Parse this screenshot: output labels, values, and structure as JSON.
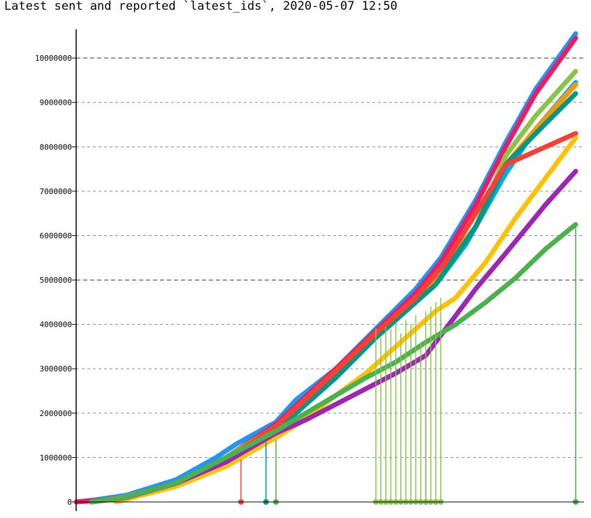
{
  "chart_data": {
    "type": "line",
    "title": "Latest sent and reported `latest_ids`, 2020-05-07 12:50",
    "xlabel": "",
    "ylabel": "",
    "ylim": [
      0,
      10600000
    ],
    "xlim": [
      0,
      100
    ],
    "grid": "horizontal dashed",
    "y_ticks": [
      {
        "value": 0,
        "label": "0"
      },
      {
        "value": 1000000,
        "label": "1000000"
      },
      {
        "value": 2000000,
        "label": "2000000"
      },
      {
        "value": 3000000,
        "label": "3000000"
      },
      {
        "value": 4000000,
        "label": "4000000"
      },
      {
        "value": 5000000,
        "label": "5000000"
      },
      {
        "value": 6000000,
        "label": "6000000"
      },
      {
        "value": 7000000,
        "label": "7000000"
      },
      {
        "value": 8000000,
        "label": "8000000"
      },
      {
        "value": 9000000,
        "label": "9000000"
      },
      {
        "value": 10000000,
        "label": "10000000"
      }
    ],
    "series": [
      {
        "color": "#2196f3",
        "values": [
          [
            0,
            0
          ],
          [
            4,
            50000
          ],
          [
            10,
            150000
          ],
          [
            20,
            500000
          ],
          [
            28,
            1000000
          ],
          [
            32,
            1300000
          ],
          [
            40,
            1800000
          ],
          [
            44,
            2300000
          ],
          [
            52,
            3000000
          ],
          [
            60,
            3900000
          ],
          [
            68,
            4800000
          ],
          [
            73,
            5500000
          ],
          [
            80,
            6800000
          ],
          [
            86,
            8100000
          ],
          [
            92,
            9300000
          ],
          [
            100,
            10550000
          ]
        ]
      },
      {
        "color": "#e91e63",
        "values": [
          [
            0,
            0
          ],
          [
            4,
            30000
          ],
          [
            10,
            120000
          ],
          [
            20,
            430000
          ],
          [
            30,
            1000000
          ],
          [
            40,
            1750000
          ],
          [
            52,
            3000000
          ],
          [
            60,
            3850000
          ],
          [
            68,
            4700000
          ],
          [
            73,
            5400000
          ],
          [
            80,
            6700000
          ],
          [
            86,
            8000000
          ],
          [
            92,
            9200000
          ],
          [
            100,
            10450000
          ]
        ]
      },
      {
        "color": "#8bc34a",
        "values": [
          [
            3,
            0
          ],
          [
            10,
            120000
          ],
          [
            20,
            420000
          ],
          [
            30,
            1000000
          ],
          [
            40,
            1700000
          ],
          [
            52,
            2900000
          ],
          [
            60,
            3700000
          ],
          [
            68,
            4500000
          ],
          [
            72,
            5100000
          ],
          [
            80,
            6200000
          ],
          [
            86,
            7800000
          ],
          [
            92,
            8700000
          ],
          [
            100,
            9700000
          ]
        ]
      },
      {
        "color": "#03a9f4",
        "values": [
          [
            3,
            0
          ],
          [
            10,
            110000
          ],
          [
            20,
            400000
          ],
          [
            30,
            950000
          ],
          [
            40,
            1650000
          ],
          [
            52,
            2850000
          ],
          [
            60,
            3750000
          ],
          [
            66,
            4300000
          ],
          [
            72,
            4900000
          ],
          [
            78,
            5800000
          ],
          [
            86,
            7400000
          ],
          [
            92,
            8400000
          ],
          [
            100,
            9450000
          ]
        ]
      },
      {
        "color": "#ff9800",
        "values": [
          [
            3,
            0
          ],
          [
            10,
            110000
          ],
          [
            20,
            410000
          ],
          [
            30,
            980000
          ],
          [
            40,
            1700000
          ],
          [
            52,
            2950000
          ],
          [
            60,
            3800000
          ],
          [
            68,
            4600000
          ],
          [
            74,
            5300000
          ],
          [
            80,
            6200000
          ],
          [
            86,
            7600000
          ],
          [
            92,
            8400000
          ],
          [
            100,
            9400000
          ]
        ]
      },
      {
        "color": "#009688",
        "values": [
          [
            3,
            0
          ],
          [
            10,
            100000
          ],
          [
            20,
            380000
          ],
          [
            30,
            900000
          ],
          [
            40,
            1600000
          ],
          [
            52,
            2800000
          ],
          [
            60,
            3700000
          ],
          [
            66,
            4300000
          ],
          [
            72,
            4900000
          ],
          [
            80,
            6200000
          ],
          [
            86,
            7600000
          ],
          [
            92,
            8300000
          ],
          [
            100,
            9200000
          ]
        ]
      },
      {
        "color": "#f44336",
        "values": [
          [
            3,
            0
          ],
          [
            10,
            100000
          ],
          [
            20,
            400000
          ],
          [
            30,
            960000
          ],
          [
            40,
            1700000
          ],
          [
            52,
            2950000
          ],
          [
            60,
            3800000
          ],
          [
            68,
            4600000
          ],
          [
            74,
            5400000
          ],
          [
            80,
            6500000
          ],
          [
            86,
            7600000
          ],
          [
            92,
            7900000
          ],
          [
            100,
            8300000
          ]
        ]
      },
      {
        "color": "#ffc107",
        "values": [
          [
            8,
            0
          ],
          [
            12,
            120000
          ],
          [
            20,
            350000
          ],
          [
            30,
            800000
          ],
          [
            40,
            1450000
          ],
          [
            45,
            1800000
          ],
          [
            52,
            2400000
          ],
          [
            58,
            2900000
          ],
          [
            63,
            3400000
          ],
          [
            67,
            3800000
          ],
          [
            72,
            4300000
          ],
          [
            76,
            4600000
          ],
          [
            82,
            5400000
          ],
          [
            88,
            6400000
          ],
          [
            94,
            7300000
          ],
          [
            100,
            8200000
          ]
        ]
      },
      {
        "color": "#9c27b0",
        "values": [
          [
            3,
            0
          ],
          [
            10,
            100000
          ],
          [
            20,
            420000
          ],
          [
            30,
            900000
          ],
          [
            40,
            1550000
          ],
          [
            46,
            1850000
          ],
          [
            52,
            2200000
          ],
          [
            58,
            2550000
          ],
          [
            64,
            2900000
          ],
          [
            70,
            3300000
          ],
          [
            74,
            3900000
          ],
          [
            80,
            4800000
          ],
          [
            86,
            5600000
          ],
          [
            94,
            6700000
          ],
          [
            100,
            7450000
          ]
        ]
      },
      {
        "color": "#4caf50",
        "values": [
          [
            3,
            0
          ],
          [
            10,
            110000
          ],
          [
            20,
            430000
          ],
          [
            30,
            1000000
          ],
          [
            40,
            1600000
          ],
          [
            46,
            2000000
          ],
          [
            52,
            2400000
          ],
          [
            58,
            2800000
          ],
          [
            64,
            3150000
          ],
          [
            70,
            3600000
          ],
          [
            76,
            4000000
          ],
          [
            82,
            4500000
          ],
          [
            88,
            5050000
          ],
          [
            94,
            5700000
          ],
          [
            100,
            6250000
          ]
        ]
      }
    ],
    "resets": [
      {
        "color": "#f44336",
        "points": [
          [
            33,
            950000
          ]
        ]
      },
      {
        "color": "#009688",
        "points": [
          [
            38,
            1350000
          ]
        ]
      },
      {
        "color": "#4caf50",
        "points": [
          [
            40,
            1400000
          ],
          [
            100,
            6250000
          ]
        ]
      },
      {
        "color": "#9c27b0",
        "points": [
          [
            70,
            3200000
          ]
        ]
      },
      {
        "color": "#8bc34a",
        "points": [
          [
            60,
            3900000
          ],
          [
            61,
            3700000
          ],
          [
            62,
            3950000
          ],
          [
            63,
            3900000
          ],
          [
            64,
            4000000
          ],
          [
            65,
            3800000
          ],
          [
            66,
            4100000
          ],
          [
            67,
            4000000
          ],
          [
            68,
            4200000
          ],
          [
            69,
            3600000
          ],
          [
            70,
            4300000
          ],
          [
            71,
            4400000
          ],
          [
            72,
            4500000
          ],
          [
            73,
            4600000
          ]
        ]
      }
    ]
  }
}
